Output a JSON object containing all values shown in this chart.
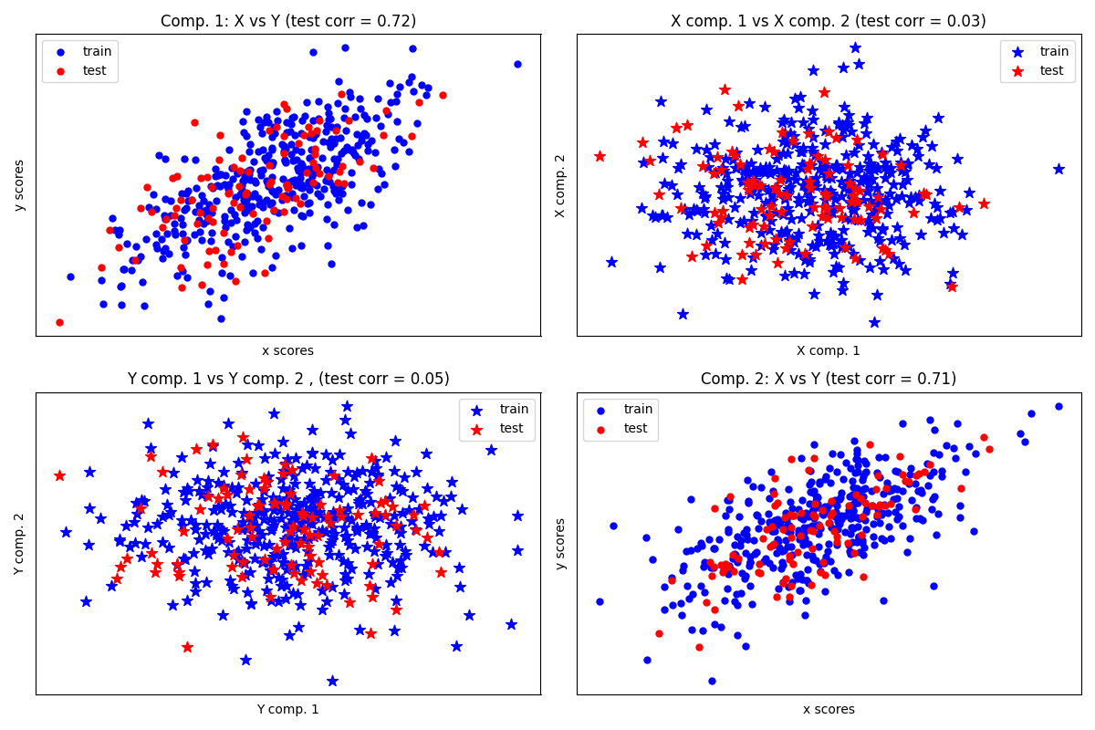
{
  "titles": [
    "Comp. 1: X vs Y (test corr = 0.72)",
    "X comp. 1 vs X comp. 2 (test corr = 0.03)",
    "Y comp. 1 vs Y comp. 2 , (test corr = 0.05)",
    "Comp. 2: X vs Y (test corr = 0.71)"
  ],
  "xlabels": [
    "x scores",
    "X comp. 1",
    "Y comp. 1",
    "x scores"
  ],
  "ylabels": [
    "y scores",
    "X comp. 2",
    "Y comp. 2",
    "y scores"
  ],
  "color_train": "#0000ff",
  "color_test": "#ff0000",
  "legend_locs": [
    "upper left",
    "upper right",
    "upper right",
    "upper left"
  ],
  "markers": [
    "o",
    "*",
    "*",
    "o"
  ],
  "n_samples": 500,
  "n_test": 100,
  "random_seed": 0,
  "figsize": [
    12,
    8
  ],
  "dpi": 100,
  "marker_size_circle": 25,
  "marker_size_star": 80
}
